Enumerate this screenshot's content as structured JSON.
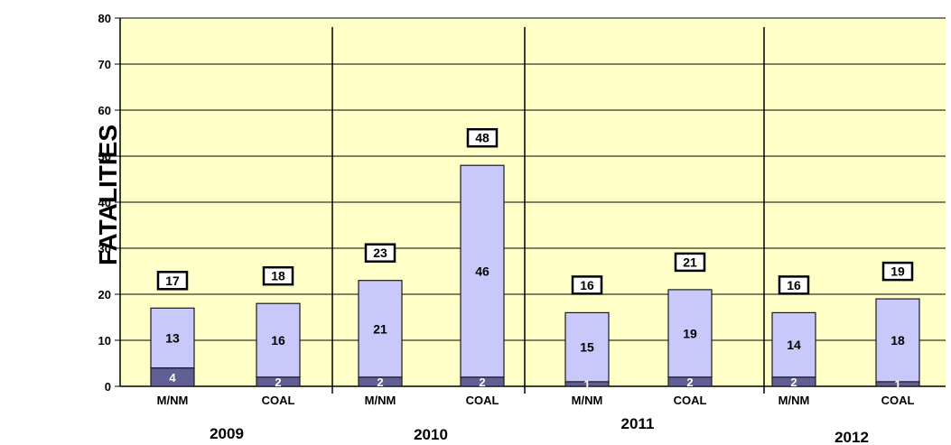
{
  "chart_data": {
    "type": "bar",
    "stacked": true,
    "ylabel": "FATALITIES",
    "ylim": [
      0,
      80
    ],
    "yticks": [
      0,
      10,
      20,
      30,
      40,
      50,
      60,
      70,
      80
    ],
    "grid": true,
    "groups": [
      {
        "year": "2009",
        "categories": [
          "M/NM",
          "COAL"
        ]
      },
      {
        "year": "2010",
        "categories": [
          "M/NM",
          "COAL"
        ]
      },
      {
        "year": "2011",
        "categories": [
          "M/NM",
          "COAL"
        ]
      },
      {
        "year": "2012",
        "categories": [
          "M/NM",
          "COAL"
        ]
      }
    ],
    "categories": [
      "M/NM",
      "COAL",
      "M/NM",
      "COAL",
      "M/NM",
      "COAL",
      "M/NM",
      "COAL"
    ],
    "series": [
      {
        "values": [
          4,
          2,
          2,
          2,
          1,
          2,
          2,
          1
        ]
      },
      {
        "values": [
          13,
          16,
          21,
          46,
          15,
          19,
          14,
          18
        ]
      }
    ],
    "totals": [
      17,
      18,
      23,
      48,
      16,
      21,
      16,
      19
    ],
    "colors": {
      "plot_bg": "#ffffc8",
      "bottom_series": "#5f5f96",
      "top_series": "#c8c8fa",
      "bar_outline": "#1a1a1a"
    }
  }
}
